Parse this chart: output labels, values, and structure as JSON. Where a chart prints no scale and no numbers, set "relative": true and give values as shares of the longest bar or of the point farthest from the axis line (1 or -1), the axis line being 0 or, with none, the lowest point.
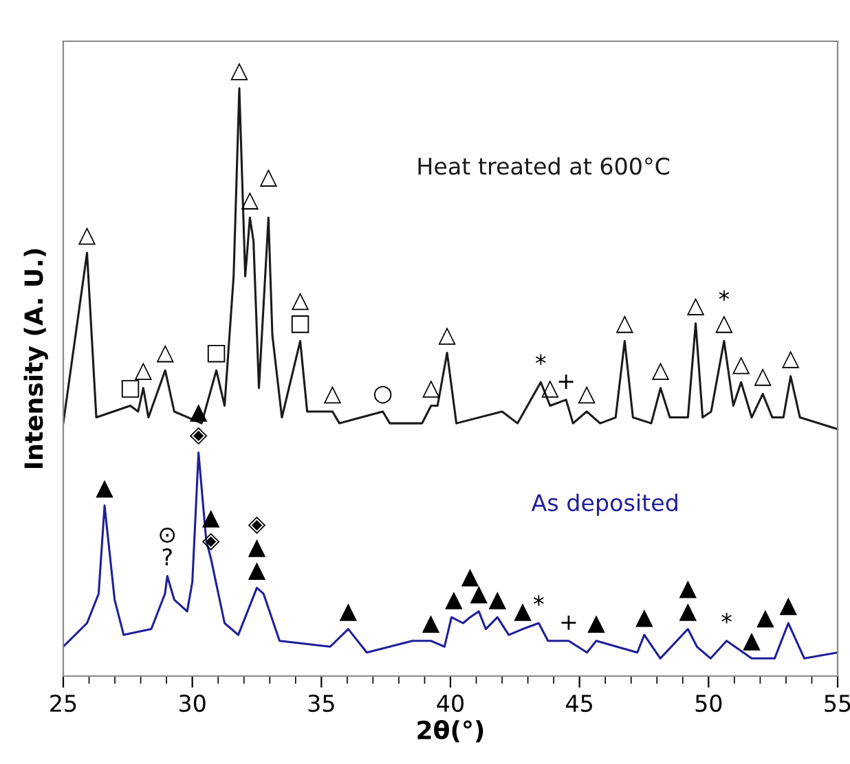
{
  "chart_data": {
    "type": "line",
    "relative": true,
    "xlabel": "2θ(°)",
    "ylabel": "Intensity (A. U.)",
    "xlim": [
      25,
      55
    ],
    "xticks": [
      25,
      30,
      35,
      40,
      45,
      50,
      55
    ],
    "tick_labels": "x",
    "grid": false,
    "legend": false,
    "marker": "none",
    "line_style": "solid",
    "series": [
      {
        "name": "Heat treated at 600°C",
        "color": "#1a1a1a",
        "x": [
          25.0,
          25.92,
          26.28,
          27.6,
          27.9,
          28.1,
          28.3,
          28.95,
          29.3,
          30.36,
          30.93,
          31.25,
          31.6,
          31.82,
          32.05,
          32.23,
          32.37,
          32.58,
          32.95,
          33.1,
          33.47,
          34.18,
          34.45,
          35.43,
          35.7,
          37.38,
          37.65,
          38.9,
          39.25,
          39.5,
          39.87,
          40.23,
          42.0,
          42.6,
          43.5,
          43.86,
          44.48,
          44.75,
          45.28,
          45.8,
          46.4,
          46.75,
          47.07,
          47.78,
          48.14,
          48.5,
          49.2,
          49.5,
          49.77,
          50.1,
          50.6,
          50.96,
          51.26,
          51.67,
          52.1,
          52.47,
          52.9,
          53.18,
          53.54,
          55.0
        ],
        "values": [
          0.43,
          0.72,
          0.44,
          0.46,
          0.45,
          0.49,
          0.44,
          0.52,
          0.45,
          0.43,
          0.52,
          0.46,
          0.68,
          1.0,
          0.68,
          0.78,
          0.74,
          0.49,
          0.78,
          0.58,
          0.44,
          0.57,
          0.45,
          0.45,
          0.43,
          0.45,
          0.43,
          0.43,
          0.46,
          0.46,
          0.55,
          0.43,
          0.45,
          0.43,
          0.5,
          0.46,
          0.47,
          0.43,
          0.45,
          0.43,
          0.44,
          0.57,
          0.44,
          0.43,
          0.49,
          0.44,
          0.44,
          0.6,
          0.44,
          0.45,
          0.57,
          0.46,
          0.5,
          0.44,
          0.48,
          0.44,
          0.44,
          0.51,
          0.44,
          0.42
        ]
      },
      {
        "name": "As deposited",
        "color": "#1f1f99",
        "x": [
          25.0,
          25.92,
          26.37,
          26.6,
          26.99,
          27.34,
          28.41,
          28.94,
          29.03,
          29.3,
          29.8,
          30.0,
          30.24,
          30.54,
          30.72,
          31.25,
          31.78,
          32.5,
          32.76,
          33.38,
          35.34,
          36.04,
          36.76,
          38.53,
          39.24,
          39.77,
          40.04,
          40.49,
          40.76,
          41.1,
          41.37,
          41.82,
          42.26,
          42.8,
          43.42,
          43.78,
          44.58,
          45.29,
          45.65,
          47.24,
          47.51,
          48.13,
          49.2,
          49.55,
          50.08,
          50.7,
          51.67,
          52.2,
          52.56,
          53.09,
          53.71,
          55.0
        ],
        "values": [
          0.05,
          0.09,
          0.14,
          0.29,
          0.13,
          0.07,
          0.08,
          0.14,
          0.17,
          0.13,
          0.11,
          0.16,
          0.38,
          0.23,
          0.2,
          0.09,
          0.07,
          0.15,
          0.14,
          0.06,
          0.05,
          0.08,
          0.04,
          0.06,
          0.06,
          0.05,
          0.1,
          0.09,
          0.1,
          0.11,
          0.08,
          0.1,
          0.07,
          0.08,
          0.09,
          0.06,
          0.06,
          0.04,
          0.06,
          0.04,
          0.07,
          0.03,
          0.08,
          0.05,
          0.03,
          0.06,
          0.03,
          0.03,
          0.03,
          0.09,
          0.03,
          0.04
        ]
      }
    ],
    "annotations": [
      {
        "text": "△",
        "x": 25.92,
        "y": 0.72
      },
      {
        "text": "□",
        "x": 27.6,
        "y": 0.46
      },
      {
        "text": "△",
        "x": 28.1,
        "y": 0.49
      },
      {
        "text": "△",
        "x": 28.95,
        "y": 0.52
      },
      {
        "text": "□",
        "x": 30.93,
        "y": 0.52
      },
      {
        "text": "△",
        "x": 31.82,
        "y": 1.0
      },
      {
        "text": "△",
        "x": 32.23,
        "y": 0.78
      },
      {
        "text": "△",
        "x": 32.95,
        "y": 0.78
      },
      {
        "text": "□",
        "x": 34.18,
        "y": 0.57
      },
      {
        "text": "△",
        "x": 34.18,
        "y": 0.57
      },
      {
        "text": "△",
        "x": 35.43,
        "y": 0.45
      },
      {
        "text": "○",
        "x": 37.38,
        "y": 0.45
      },
      {
        "text": "△",
        "x": 39.25,
        "y": 0.46
      },
      {
        "text": "△",
        "x": 39.87,
        "y": 0.55
      },
      {
        "text": "*",
        "x": 43.5,
        "y": 0.5
      },
      {
        "text": "△",
        "x": 43.86,
        "y": 0.46
      },
      {
        "text": "+",
        "x": 44.48,
        "y": 0.47
      },
      {
        "text": "△",
        "x": 45.28,
        "y": 0.45
      },
      {
        "text": "△",
        "x": 46.75,
        "y": 0.57
      },
      {
        "text": "△",
        "x": 48.14,
        "y": 0.49
      },
      {
        "text": "△",
        "x": 49.5,
        "y": 0.6
      },
      {
        "text": "△",
        "x": 50.6,
        "y": 0.57
      },
      {
        "text": "*",
        "x": 50.6,
        "y": 0.57
      },
      {
        "text": "△",
        "x": 51.26,
        "y": 0.5
      },
      {
        "text": "△",
        "x": 52.1,
        "y": 0.48
      },
      {
        "text": "△",
        "x": 53.18,
        "y": 0.51
      },
      {
        "text": "▲",
        "x": 26.6,
        "y": 0.29
      },
      {
        "text": "◈",
        "x": 30.24,
        "y": 0.38
      },
      {
        "text": "▲",
        "x": 30.24,
        "y": 0.38
      },
      {
        "text": "◈",
        "x": 30.72,
        "y": 0.2
      },
      {
        "text": "▲",
        "x": 30.72,
        "y": 0.2
      },
      {
        "text": "▲",
        "x": 32.5,
        "y": 0.15
      },
      {
        "text": "▲",
        "x": 32.5,
        "y": 0.15
      },
      {
        "text": "◈",
        "x": 32.5,
        "y": 0.15
      },
      {
        "text": "?",
        "x": 29.03,
        "y": 0.17
      },
      {
        "text": "⊙",
        "x": 29.03,
        "y": 0.17
      },
      {
        "text": "▲",
        "x": 36.04,
        "y": 0.08
      },
      {
        "text": "▲",
        "x": 39.24,
        "y": 0.06
      },
      {
        "text": "▲",
        "x": 40.13,
        "y": 0.1
      },
      {
        "text": "▲",
        "x": 41.1,
        "y": 0.11
      },
      {
        "text": "▲",
        "x": 40.76,
        "y": 0.1
      },
      {
        "text": "▲",
        "x": 41.82,
        "y": 0.1
      },
      {
        "text": "▲",
        "x": 42.8,
        "y": 0.08
      },
      {
        "text": "*",
        "x": 43.42,
        "y": 0.09
      },
      {
        "text": "+",
        "x": 44.58,
        "y": 0.06
      },
      {
        "text": "▲",
        "x": 45.65,
        "y": 0.06
      },
      {
        "text": "▲",
        "x": 47.51,
        "y": 0.07
      },
      {
        "text": "▲",
        "x": 49.2,
        "y": 0.08
      },
      {
        "text": "▲",
        "x": 49.2,
        "y": 0.08
      },
      {
        "text": "*",
        "x": 50.7,
        "y": 0.06
      },
      {
        "text": "▲",
        "x": 51.67,
        "y": 0.03
      },
      {
        "text": "▲",
        "x": 52.2,
        "y": 0.03
      },
      {
        "text": "▲",
        "x": 53.09,
        "y": 0.09
      }
    ]
  }
}
